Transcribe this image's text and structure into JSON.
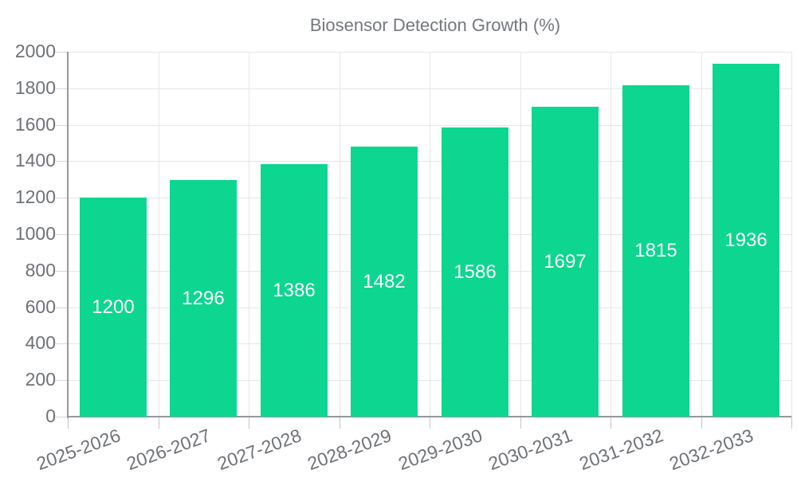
{
  "legend": {
    "label": "Biosensor Detection Growth (%)"
  },
  "colors": {
    "bar": "#0dd690",
    "bar_label": "#ffffff",
    "axis_line": "#95989e",
    "grid_line": "#e7e7ea",
    "tick_text": "#6e7177",
    "legend_text": "#74777d",
    "background": "#ffffff"
  },
  "chart_data": {
    "type": "bar",
    "title": "Biosensor Detection Growth (%)",
    "categories": [
      "2025-2026",
      "2026-2027",
      "2027-2028",
      "2028-2029",
      "2029-2030",
      "2030-2031",
      "2031-2032",
      "2032-2033"
    ],
    "values": [
      1200,
      1296,
      1386,
      1482,
      1586,
      1697,
      1815,
      1936
    ],
    "xlabel": "",
    "ylabel": "",
    "ylim": [
      0,
      2000
    ],
    "ytick_step": 200,
    "ytick_labels": [
      "0",
      "200",
      "400",
      "600",
      "800",
      "1000",
      "1200",
      "1400",
      "1600",
      "1800",
      "2000"
    ],
    "grid": true,
    "legend_position": "top-center",
    "bar_labels_inside": true,
    "x_label_rotation_deg": -20
  }
}
